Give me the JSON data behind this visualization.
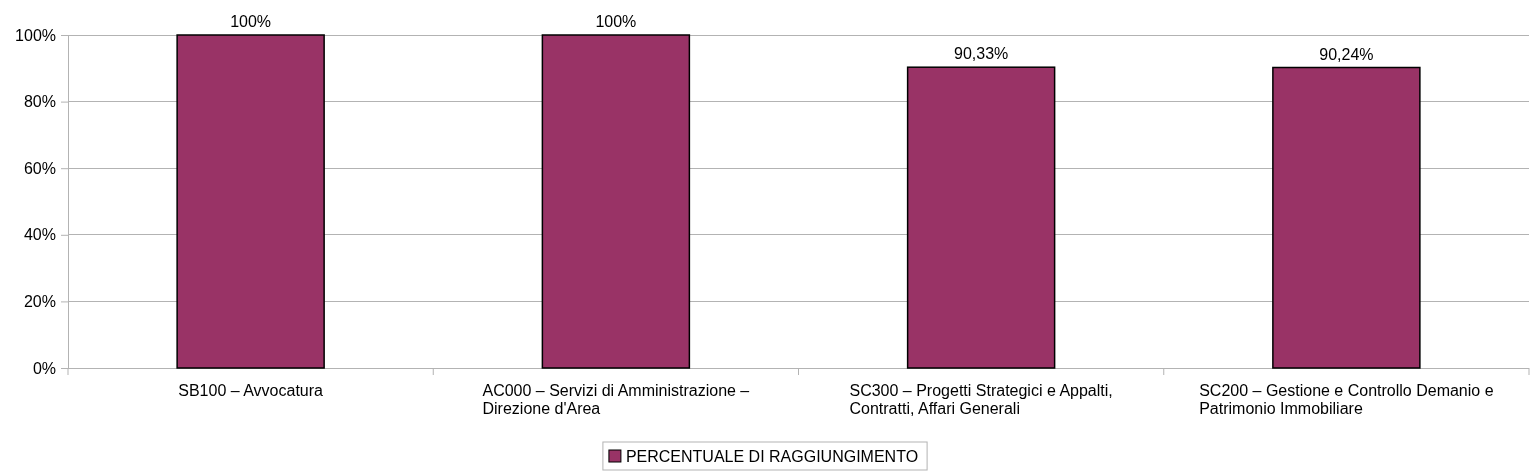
{
  "chart_data": {
    "type": "bar",
    "categories": [
      "SB100 – Avvocatura",
      "AC000 – Servizi di Amministrazione – Direzione d'Area",
      "SC300 – Progetti Strategici e Appalti, Contratti, Affari Generali",
      "SC200 – Gestione e Controllo Demanio e Patrimonio Immobiliare"
    ],
    "series": [
      {
        "name": "PERCENTUALE DI RAGGIUNGIMENTO",
        "color": "#993366",
        "values": [
          100,
          100,
          90.33,
          90.24
        ],
        "value_labels": [
          "100%",
          "100%",
          "90,33%",
          "90,24%"
        ]
      }
    ],
    "ylim": [
      0,
      100
    ],
    "yticks": [
      {
        "value": 0,
        "label": "0%"
      },
      {
        "value": 20,
        "label": "20%"
      },
      {
        "value": 40,
        "label": "40%"
      },
      {
        "value": 60,
        "label": "60%"
      },
      {
        "value": 80,
        "label": "80%"
      },
      {
        "value": 100,
        "label": "100%"
      }
    ],
    "grid": "y",
    "legend": "bottom"
  }
}
